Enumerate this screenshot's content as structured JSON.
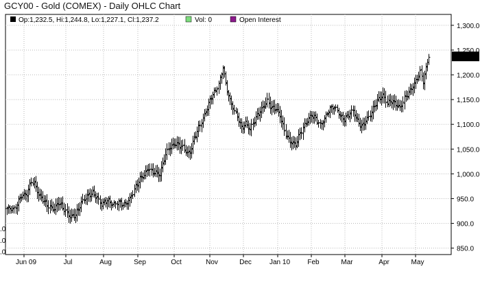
{
  "window": {
    "title": "GCY00 - Gold (COMEX) - Daily OHLC Chart"
  },
  "legend": {
    "items": [
      {
        "label": "Op:1,232.5, Hi:1,244.8, Lo:1,227.1, Cl:1,237.2",
        "color": "#000000"
      },
      {
        "label": "Vol: 0",
        "color": "#7ddc7d"
      },
      {
        "label": "Open Interest",
        "color": "#8b1a8b"
      }
    ]
  },
  "colors": {
    "bars": "#000000",
    "grid": "#b8b8b8",
    "last_price_bg": "#000000",
    "last_price_fg": "#ffffff"
  },
  "chart_data": {
    "type": "ohlc",
    "title": "GCY00 - Gold (COMEX) - Daily OHLC Chart",
    "xlabel": "",
    "ylabel": "",
    "ylim": [
      837,
      1322
    ],
    "grid": true,
    "legend_position": "top-left",
    "y_ticks": [
      {
        "value": 1300,
        "label": "1,300.0"
      },
      {
        "value": 1250,
        "label": "1,250.0"
      },
      {
        "value": 1200,
        "label": "1,200.0"
      },
      {
        "value": 1150,
        "label": "1,150.0"
      },
      {
        "value": 1100,
        "label": "1,100.0"
      },
      {
        "value": 1050,
        "label": "1,050.0"
      },
      {
        "value": 1000,
        "label": "1,000.0"
      },
      {
        "value": 950,
        "label": "950.0"
      },
      {
        "value": 900,
        "label": "900.0"
      },
      {
        "value": 850,
        "label": "850.0"
      }
    ],
    "left_ticks": [
      {
        "value": 890,
        "label": ".0"
      },
      {
        "value": 866,
        "label": ".0"
      },
      {
        "value": 843,
        "label": ".0"
      }
    ],
    "x_ticks": [
      "Jun 09",
      "Jul",
      "Aug",
      "Sep",
      "Oct",
      "Nov",
      "Dec",
      "Jan 10",
      "Feb",
      "Mar",
      "Apr",
      "May"
    ],
    "last_price": {
      "value": 1237.2,
      "label": "1,237.2"
    },
    "close_anchors": [
      [
        0,
        930
      ],
      [
        5,
        925
      ],
      [
        10,
        958
      ],
      [
        14,
        962
      ],
      [
        17,
        985
      ],
      [
        19,
        978
      ],
      [
        22,
        955
      ],
      [
        26,
        945
      ],
      [
        30,
        935
      ],
      [
        33,
        930
      ],
      [
        36,
        940
      ],
      [
        40,
        925
      ],
      [
        44,
        915
      ],
      [
        48,
        920
      ],
      [
        52,
        940
      ],
      [
        56,
        952
      ],
      [
        60,
        962
      ],
      [
        63,
        955
      ],
      [
        66,
        940
      ],
      [
        70,
        945
      ],
      [
        74,
        935
      ],
      [
        78,
        945
      ],
      [
        82,
        940
      ],
      [
        86,
        948
      ],
      [
        89,
        965
      ],
      [
        93,
        990
      ],
      [
        96,
        1000
      ],
      [
        99,
        1015
      ],
      [
        101,
        1005
      ],
      [
        104,
        1000
      ],
      [
        107,
        995
      ],
      [
        110,
        1030
      ],
      [
        113,
        1055
      ],
      [
        117,
        1062
      ],
      [
        120,
        1058
      ],
      [
        123,
        1050
      ],
      [
        126,
        1040
      ],
      [
        128,
        1045
      ],
      [
        131,
        1075
      ],
      [
        134,
        1095
      ],
      [
        137,
        1110
      ],
      [
        140,
        1130
      ],
      [
        143,
        1155
      ],
      [
        146,
        1170
      ],
      [
        148,
        1185
      ],
      [
        150,
        1205
      ],
      [
        151,
        1220
      ],
      [
        153,
        1180
      ],
      [
        156,
        1145
      ],
      [
        159,
        1125
      ],
      [
        162,
        1110
      ],
      [
        164,
        1095
      ],
      [
        167,
        1105
      ],
      [
        170,
        1090
      ],
      [
        173,
        1105
      ],
      [
        176,
        1120
      ],
      [
        179,
        1135
      ],
      [
        182,
        1150
      ],
      [
        185,
        1135
      ],
      [
        188,
        1130
      ],
      [
        191,
        1115
      ],
      [
        194,
        1085
      ],
      [
        197,
        1070
      ],
      [
        200,
        1065
      ],
      [
        202,
        1060
      ],
      [
        204,
        1075
      ],
      [
        207,
        1090
      ],
      [
        210,
        1105
      ],
      [
        213,
        1120
      ],
      [
        216,
        1115
      ],
      [
        219,
        1100
      ],
      [
        222,
        1110
      ],
      [
        225,
        1125
      ],
      [
        228,
        1135
      ],
      [
        231,
        1130
      ],
      [
        233,
        1120
      ],
      [
        236,
        1112
      ],
      [
        239,
        1118
      ],
      [
        242,
        1125
      ],
      [
        245,
        1105
      ],
      [
        248,
        1098
      ],
      [
        251,
        1110
      ],
      [
        254,
        1120
      ],
      [
        257,
        1135
      ],
      [
        260,
        1148
      ],
      [
        263,
        1158
      ],
      [
        266,
        1145
      ],
      [
        269,
        1150
      ],
      [
        272,
        1140
      ],
      [
        275,
        1130
      ],
      [
        278,
        1150
      ],
      [
        281,
        1165
      ],
      [
        284,
        1180
      ],
      [
        287,
        1195
      ],
      [
        289,
        1205
      ],
      [
        291,
        1185
      ],
      [
        293,
        1210
      ],
      [
        295,
        1237
      ]
    ]
  }
}
